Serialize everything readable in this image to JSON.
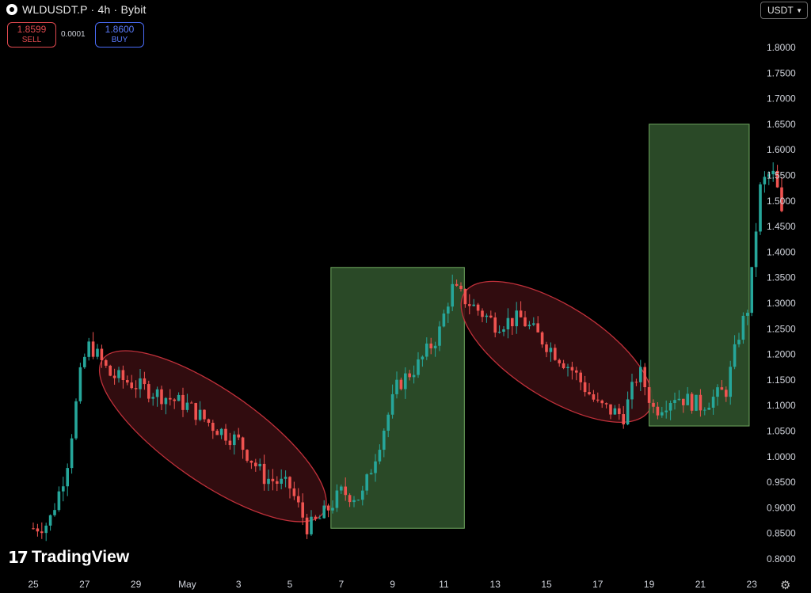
{
  "header": {
    "title": "WLDUSDT.P · 4h · Bybit",
    "sell_price": "1.8599",
    "sell_label": "SELL",
    "spread": "0.0001",
    "buy_price": "1.8600",
    "buy_label": "BUY",
    "currency": "USDT"
  },
  "footer": {
    "brand": "TradingView"
  },
  "icons": {
    "logo": "circle-icon",
    "currency_dropdown": "chevron-down-icon",
    "settings": "gear-icon"
  },
  "colors": {
    "up": "#26a69a",
    "down": "#ef5350",
    "ellipse_stroke": "#c0303a",
    "ellipse_fill": "#3a0e12",
    "box_fill": "#2e4f2a",
    "box_stroke": "#6fa85f"
  },
  "chart_data": {
    "type": "candlestick",
    "symbol": "WLDUSDT.P",
    "interval": "4h",
    "exchange": "Bybit",
    "y_ticks": [
      "1.8000",
      "1.7500",
      "1.7000",
      "1.6500",
      "1.6000",
      "1.5500",
      "1.5000",
      "1.4500",
      "1.4000",
      "1.3500",
      "1.3000",
      "1.2500",
      "1.2000",
      "1.1500",
      "1.1000",
      "1.0500",
      "1.0000",
      "0.9500",
      "0.9000",
      "0.8500",
      "0.8000"
    ],
    "x_ticks": [
      {
        "label": "25",
        "day": 0
      },
      {
        "label": "27",
        "day": 2
      },
      {
        "label": "29",
        "day": 4
      },
      {
        "label": "May",
        "day": 6
      },
      {
        "label": "3",
        "day": 8
      },
      {
        "label": "5",
        "day": 10
      },
      {
        "label": "7",
        "day": 12
      },
      {
        "label": "9",
        "day": 14
      },
      {
        "label": "11",
        "day": 16
      },
      {
        "label": "13",
        "day": 18
      },
      {
        "label": "15",
        "day": 20
      },
      {
        "label": "17",
        "day": 22
      },
      {
        "label": "19",
        "day": 24
      },
      {
        "label": "21",
        "day": 26
      },
      {
        "label": "23",
        "day": 28
      }
    ],
    "ylim": [
      0.78,
      1.85
    ],
    "price_path": [
      [
        0,
        0.86
      ],
      [
        0.6,
        0.87
      ],
      [
        1.0,
        0.93
      ],
      [
        1.3,
        0.98
      ],
      [
        1.6,
        1.08
      ],
      [
        1.9,
        1.18
      ],
      [
        2.2,
        1.22
      ],
      [
        3.0,
        1.16
      ],
      [
        4.0,
        1.14
      ],
      [
        5.0,
        1.12
      ],
      [
        6.0,
        1.1
      ],
      [
        7.0,
        1.06
      ],
      [
        8.0,
        1.03
      ],
      [
        9.0,
        0.96
      ],
      [
        10.0,
        0.94
      ],
      [
        10.7,
        0.86
      ],
      [
        11.2,
        0.88
      ],
      [
        12.0,
        0.93
      ],
      [
        12.8,
        0.92
      ],
      [
        13.5,
        1.03
      ],
      [
        14.2,
        1.14
      ],
      [
        15.0,
        1.18
      ],
      [
        15.8,
        1.24
      ],
      [
        16.3,
        1.33
      ],
      [
        17.0,
        1.3
      ],
      [
        18.0,
        1.26
      ],
      [
        19.0,
        1.27
      ],
      [
        20.0,
        1.22
      ],
      [
        21.0,
        1.17
      ],
      [
        22.0,
        1.1
      ],
      [
        23.0,
        1.08
      ],
      [
        23.6,
        1.17
      ],
      [
        24.2,
        1.09
      ],
      [
        25.0,
        1.12
      ],
      [
        26.0,
        1.1
      ],
      [
        27.0,
        1.13
      ],
      [
        27.5,
        1.24
      ],
      [
        27.9,
        1.3
      ],
      [
        28.3,
        1.52
      ],
      [
        28.6,
        1.55
      ],
      [
        28.9,
        1.55
      ],
      [
        29.2,
        1.46
      ]
    ],
    "annotations": [
      {
        "type": "ellipse",
        "label": "",
        "from_day": 2.7,
        "to_day": 11.3,
        "price_start": 1.19,
        "price_end": 0.89
      },
      {
        "type": "box",
        "label": "",
        "from_day": 11.6,
        "to_day": 16.8,
        "top": 1.37,
        "bottom": 0.86
      },
      {
        "type": "ellipse",
        "label": "",
        "from_day": 16.8,
        "to_day": 24.0,
        "price_start": 1.32,
        "price_end": 1.09
      },
      {
        "type": "box",
        "label": "",
        "from_day": 24.0,
        "to_day": 27.9,
        "top": 1.65,
        "bottom": 1.06
      }
    ]
  }
}
